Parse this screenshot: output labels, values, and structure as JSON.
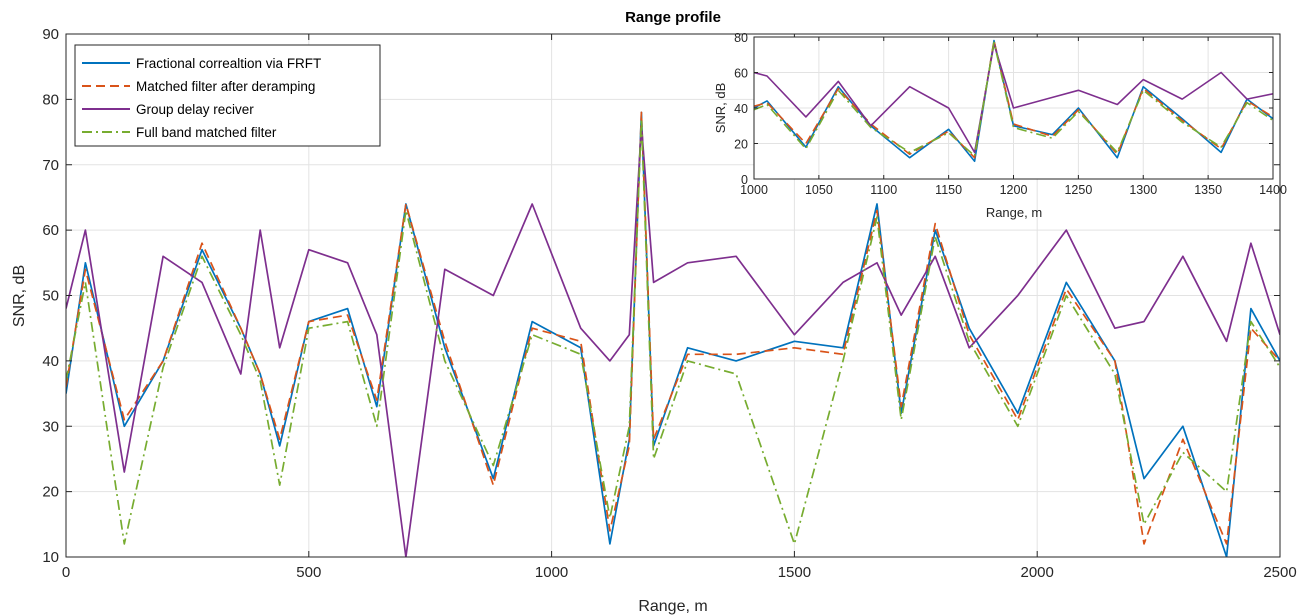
{
  "chart_data": [
    {
      "id": "main",
      "type": "line",
      "title": "Range profile",
      "xlabel": "Range, m",
      "ylabel": "SNR, dB",
      "xlim": [
        0,
        2500
      ],
      "ylim": [
        10,
        90
      ],
      "xticks": [
        0,
        500,
        1000,
        1500,
        2000,
        2500
      ],
      "yticks": [
        10,
        20,
        30,
        40,
        50,
        60,
        70,
        80,
        90
      ],
      "grid": true,
      "legend_position": "top-left",
      "series": [
        {
          "name": "Fractional correaltion via FRFT",
          "color": "#0072BD",
          "style": "solid",
          "x": [
            0,
            40,
            120,
            200,
            280,
            360,
            400,
            440,
            500,
            580,
            640,
            700,
            780,
            880,
            960,
            1060,
            1120,
            1160,
            1185,
            1210,
            1280,
            1380,
            1500,
            1600,
            1670,
            1720,
            1790,
            1860,
            1960,
            2060,
            2160,
            2220,
            2300,
            2390,
            2440,
            2500
          ],
          "y": [
            35,
            55,
            30,
            40,
            57,
            45,
            38,
            27,
            46,
            48,
            33,
            64,
            42,
            22,
            46,
            42,
            12,
            28,
            78,
            27,
            42,
            40,
            43,
            42,
            64,
            32,
            60,
            45,
            32,
            52,
            40,
            22,
            30,
            10,
            48,
            40
          ]
        },
        {
          "name": "Matched filter after deramping",
          "color": "#D95319",
          "style": "dashed",
          "x": [
            0,
            40,
            120,
            200,
            280,
            360,
            400,
            440,
            500,
            580,
            640,
            700,
            780,
            880,
            960,
            1060,
            1120,
            1160,
            1185,
            1210,
            1280,
            1380,
            1500,
            1600,
            1670,
            1720,
            1790,
            1860,
            1960,
            2060,
            2160,
            2220,
            2300,
            2390,
            2440,
            2500
          ],
          "y": [
            36,
            54,
            31,
            40,
            58,
            45,
            38,
            28,
            46,
            47,
            34,
            64,
            43,
            21,
            45,
            43,
            14,
            27,
            78,
            28,
            41,
            41,
            42,
            41,
            63,
            33,
            61,
            44,
            31,
            51,
            40,
            12,
            28,
            12,
            45,
            40
          ]
        },
        {
          "name": "Group delay reciver",
          "color": "#7E2F8E",
          "style": "solid",
          "x": [
            0,
            40,
            120,
            200,
            280,
            360,
            400,
            440,
            500,
            580,
            640,
            700,
            780,
            880,
            960,
            1060,
            1120,
            1160,
            1185,
            1210,
            1280,
            1380,
            1500,
            1600,
            1670,
            1720,
            1790,
            1860,
            1960,
            2060,
            2160,
            2220,
            2300,
            2390,
            2440,
            2500
          ],
          "y": [
            48,
            60,
            23,
            56,
            52,
            38,
            60,
            42,
            57,
            55,
            44,
            10,
            54,
            50,
            64,
            45,
            40,
            44,
            76,
            52,
            55,
            56,
            44,
            52,
            55,
            47,
            56,
            42,
            50,
            60,
            45,
            46,
            56,
            43,
            58,
            44
          ]
        },
        {
          "name": "Full band matched filter",
          "color": "#77AC30",
          "style": "dashdot",
          "x": [
            0,
            40,
            120,
            200,
            280,
            360,
            400,
            440,
            500,
            580,
            640,
            700,
            780,
            880,
            960,
            1060,
            1120,
            1160,
            1185,
            1210,
            1280,
            1380,
            1500,
            1600,
            1670,
            1720,
            1790,
            1860,
            1960,
            2060,
            2160,
            2220,
            2300,
            2390,
            2440,
            2500
          ],
          "y": [
            37,
            52,
            12,
            39,
            56,
            44,
            37,
            21,
            45,
            46,
            30,
            63,
            40,
            24,
            44,
            41,
            16,
            30,
            77,
            25,
            40,
            38,
            12,
            40,
            62,
            31,
            59,
            43,
            30,
            50,
            38,
            15,
            26,
            20,
            46,
            39
          ]
        }
      ]
    },
    {
      "id": "inset",
      "type": "line",
      "title": "",
      "xlabel": "Range, m",
      "ylabel": "SNR, dB",
      "xlim": [
        1000,
        1400
      ],
      "ylim": [
        0,
        80
      ],
      "xticks": [
        1000,
        1050,
        1100,
        1150,
        1200,
        1250,
        1300,
        1350,
        1400
      ],
      "yticks": [
        0,
        20,
        40,
        60,
        80
      ],
      "grid": true,
      "series": [
        {
          "color": "#0072BD",
          "style": "solid",
          "x": [
            1000,
            1010,
            1040,
            1065,
            1090,
            1120,
            1150,
            1170,
            1185,
            1200,
            1230,
            1250,
            1280,
            1300,
            1330,
            1360,
            1380,
            1400
          ],
          "y": [
            40,
            44,
            18,
            52,
            30,
            12,
            28,
            10,
            78,
            30,
            25,
            40,
            12,
            52,
            34,
            15,
            45,
            34
          ]
        },
        {
          "color": "#D95319",
          "style": "dashed",
          "x": [
            1000,
            1010,
            1040,
            1065,
            1090,
            1120,
            1150,
            1170,
            1185,
            1200,
            1230,
            1250,
            1280,
            1300,
            1330,
            1360,
            1380,
            1400
          ],
          "y": [
            41,
            43,
            20,
            51,
            31,
            14,
            27,
            12,
            78,
            31,
            24,
            39,
            14,
            51,
            33,
            17,
            44,
            35
          ]
        },
        {
          "color": "#7E2F8E",
          "style": "solid",
          "x": [
            1000,
            1010,
            1040,
            1065,
            1090,
            1120,
            1150,
            1170,
            1185,
            1200,
            1230,
            1250,
            1280,
            1300,
            1330,
            1360,
            1380,
            1400
          ],
          "y": [
            60,
            58,
            35,
            55,
            30,
            52,
            40,
            15,
            76,
            40,
            46,
            50,
            42,
            56,
            45,
            60,
            45,
            48
          ]
        },
        {
          "color": "#77AC30",
          "style": "dashdot",
          "x": [
            1000,
            1010,
            1040,
            1065,
            1090,
            1120,
            1150,
            1170,
            1185,
            1200,
            1230,
            1250,
            1280,
            1300,
            1330,
            1360,
            1380,
            1400
          ],
          "y": [
            39,
            42,
            17,
            50,
            29,
            15,
            26,
            13,
            77,
            29,
            23,
            38,
            15,
            50,
            32,
            18,
            43,
            33
          ]
        }
      ]
    }
  ]
}
